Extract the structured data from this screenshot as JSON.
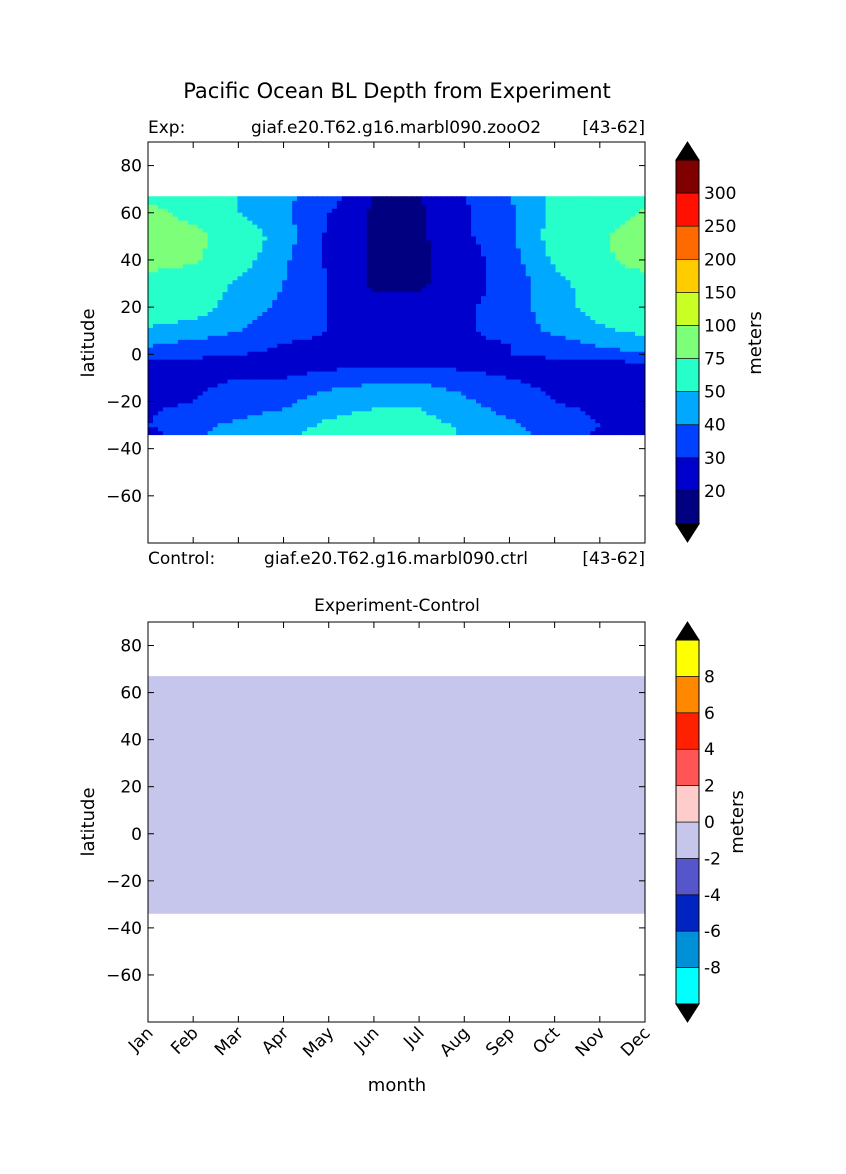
{
  "figure": {
    "title": "Pacific Ocean BL Depth from Experiment",
    "exp_label": "Exp:",
    "exp_case": "giaf.e20.T62.g16.marbl090.zooO2",
    "exp_years": "[43-62]",
    "ctrl_label": "Control:",
    "ctrl_case": "giaf.e20.T62.g16.marbl090.ctrl",
    "ctrl_years": "[43-62]"
  },
  "chart_data": [
    {
      "type": "heatmap",
      "title": "",
      "xlabel": "",
      "ylabel": "latitude",
      "xlim": [
        0,
        11
      ],
      "ylim": [
        -80,
        90
      ],
      "yticks": [
        80,
        60,
        40,
        20,
        0,
        -20,
        -40,
        -60
      ],
      "ytick_labels": [
        "80",
        "60",
        "40",
        "20",
        "0",
        "−20",
        "−40",
        "−60"
      ],
      "data_lat_range": [
        -34,
        67
      ],
      "colorbar": {
        "label": "meters",
        "levels": [
          0,
          20,
          30,
          40,
          50,
          75,
          100,
          150,
          200,
          250,
          300,
          400
        ],
        "tick_labels": [
          "20",
          "30",
          "40",
          "50",
          "75",
          "100",
          "150",
          "200",
          "250",
          "300"
        ],
        "colors": [
          "#000080",
          "#0000cd",
          "#0040ff",
          "#00a8ff",
          "#26ffca",
          "#7dff7a",
          "#caff26",
          "#ffcc00",
          "#ff6a00",
          "#ff1000",
          "#800000"
        ],
        "under_color": "#000000",
        "over_color": "#000000"
      },
      "field": {
        "months": [
          0,
          1,
          2,
          3,
          4,
          5,
          6,
          7,
          8,
          9,
          10,
          11
        ],
        "lats": [
          -34,
          -30,
          -20,
          -10,
          -5,
          0,
          5,
          10,
          20,
          30,
          40,
          50,
          60,
          67
        ],
        "values": [
          [
            25,
            38,
            45,
            48,
            55,
            58,
            60,
            48,
            45,
            35,
            28,
            25
          ],
          [
            30,
            38,
            42,
            45,
            52,
            55,
            55,
            48,
            42,
            35,
            30,
            28
          ],
          [
            28,
            30,
            35,
            38,
            45,
            48,
            48,
            42,
            35,
            30,
            28,
            28
          ],
          [
            25,
            28,
            30,
            30,
            35,
            38,
            38,
            35,
            30,
            28,
            25,
            25
          ],
          [
            25,
            25,
            25,
            25,
            28,
            30,
            30,
            28,
            25,
            25,
            25,
            25
          ],
          [
            35,
            32,
            30,
            28,
            28,
            28,
            25,
            28,
            30,
            32,
            35,
            38
          ],
          [
            42,
            38,
            35,
            30,
            28,
            25,
            25,
            28,
            30,
            35,
            42,
            48
          ],
          [
            48,
            45,
            40,
            35,
            30,
            25,
            25,
            28,
            35,
            42,
            48,
            52
          ],
          [
            58,
            55,
            45,
            38,
            30,
            25,
            25,
            28,
            35,
            45,
            55,
            62
          ],
          [
            65,
            58,
            48,
            40,
            30,
            18,
            18,
            25,
            35,
            45,
            58,
            65
          ],
          [
            85,
            78,
            55,
            42,
            28,
            18,
            18,
            25,
            35,
            52,
            70,
            85
          ],
          [
            90,
            85,
            58,
            45,
            28,
            18,
            18,
            28,
            38,
            55,
            72,
            88
          ],
          [
            85,
            65,
            50,
            42,
            30,
            18,
            18,
            28,
            38,
            52,
            65,
            78
          ],
          [
            70,
            60,
            50,
            42,
            35,
            20,
            20,
            30,
            40,
            52,
            62,
            70
          ]
        ]
      }
    },
    {
      "type": "heatmap",
      "title": "Experiment-Control",
      "xlabel": "month",
      "ylabel": "latitude",
      "xlim": [
        0,
        11
      ],
      "ylim": [
        -80,
        90
      ],
      "categories": [
        "Jan",
        "Feb",
        "Mar",
        "Apr",
        "May",
        "Jun",
        "Jul",
        "Aug",
        "Sep",
        "Oct",
        "Nov",
        "Dec"
      ],
      "yticks": [
        80,
        60,
        40,
        20,
        0,
        -20,
        -40,
        -60
      ],
      "ytick_labels": [
        "80",
        "60",
        "40",
        "20",
        "0",
        "−20",
        "−40",
        "−60"
      ],
      "data_lat_range": [
        -34,
        67
      ],
      "uniform_value_range": [
        -2,
        0
      ],
      "colorbar": {
        "label": "meters",
        "levels": [
          -10,
          -8,
          -6,
          -4,
          -2,
          0,
          2,
          4,
          6,
          8,
          10
        ],
        "tick_labels": [
          "-8",
          "-6",
          "-4",
          "-2",
          "0",
          "2",
          "4",
          "6",
          "8"
        ],
        "colors": [
          "#00ffff",
          "#0090d8",
          "#0024c0",
          "#5555cc",
          "#c6c6ec",
          "#ffcccc",
          "#ff5555",
          "#ff2000",
          "#ff8800",
          "#ffff00"
        ],
        "under_color": "#000000",
        "over_color": "#000000"
      }
    }
  ]
}
